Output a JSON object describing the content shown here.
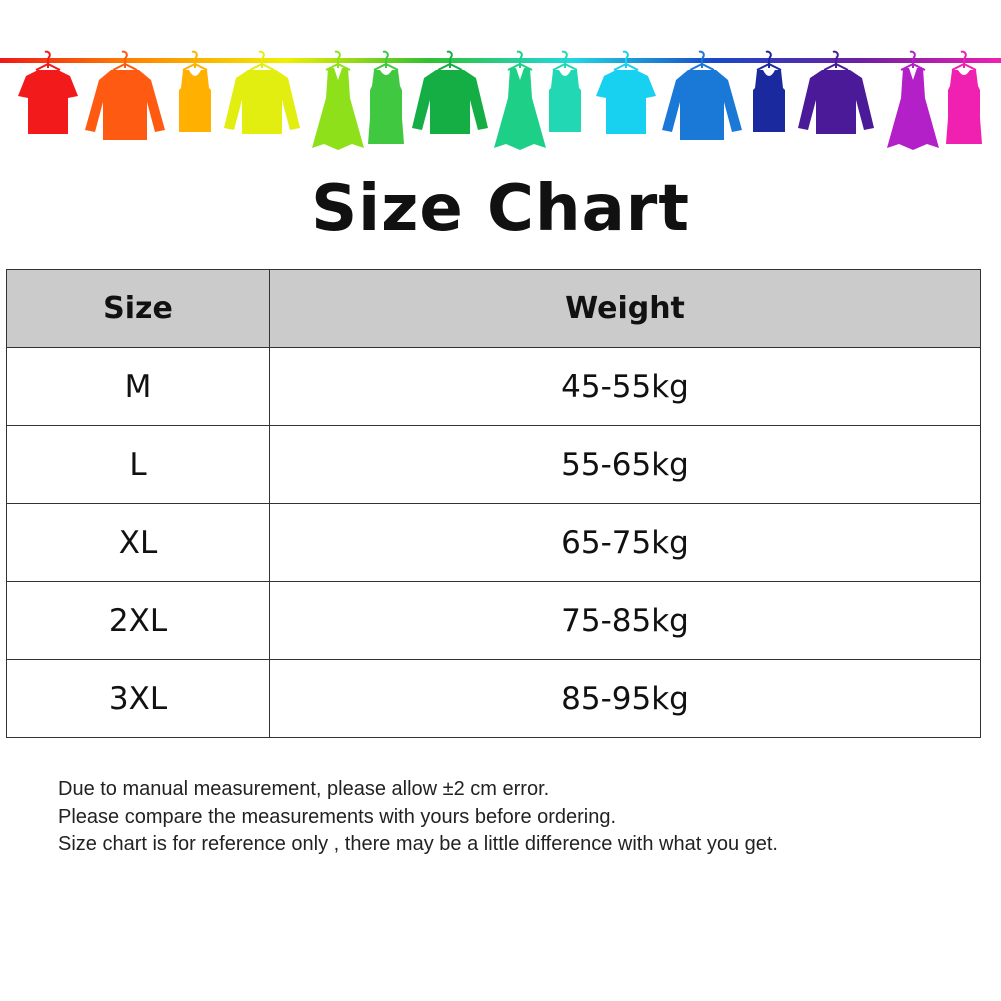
{
  "title": "Size Chart",
  "banner": {
    "rail_gradient": [
      "#f01818",
      "#ff8a00",
      "#f0f000",
      "#30c030",
      "#20d8e0",
      "#1848c8",
      "#6a20a0",
      "#f020b0"
    ],
    "garments": [
      {
        "icon": "tshirt-icon",
        "color": "#f21a1a"
      },
      {
        "icon": "shirt-icon",
        "color": "#ff5a12"
      },
      {
        "icon": "tank-top-icon",
        "color": "#ffb000"
      },
      {
        "icon": "sweater-icon",
        "color": "#e2ee10"
      },
      {
        "icon": "dress-icon",
        "color": "#8ee01a"
      },
      {
        "icon": "belted-dress-icon",
        "color": "#40c840"
      },
      {
        "icon": "sweater-icon",
        "color": "#14ae44"
      },
      {
        "icon": "dress-icon",
        "color": "#1ecf88"
      },
      {
        "icon": "tank-top-icon",
        "color": "#22d8b4"
      },
      {
        "icon": "tshirt-icon",
        "color": "#18d0f0"
      },
      {
        "icon": "shirt-icon",
        "color": "#1a78d6"
      },
      {
        "icon": "tank-top-icon",
        "color": "#1a2a9e"
      },
      {
        "icon": "sweater-icon",
        "color": "#4a1a98"
      },
      {
        "icon": "dress-icon",
        "color": "#b420c8"
      },
      {
        "icon": "belted-dress-icon",
        "color": "#f020b0"
      }
    ]
  },
  "table": {
    "headers": [
      "Size",
      "Weight"
    ],
    "rows": [
      [
        "M",
        "45-55kg"
      ],
      [
        "L",
        "55-65kg"
      ],
      [
        "XL",
        "65-75kg"
      ],
      [
        "2XL",
        "75-85kg"
      ],
      [
        "3XL",
        "85-95kg"
      ]
    ]
  },
  "notes": [
    "Due to manual measurement, please allow ±2 cm error.",
    "Please compare the measurements with yours before ordering.",
    "Size chart is for reference only , there may be a little difference with what you get."
  ]
}
